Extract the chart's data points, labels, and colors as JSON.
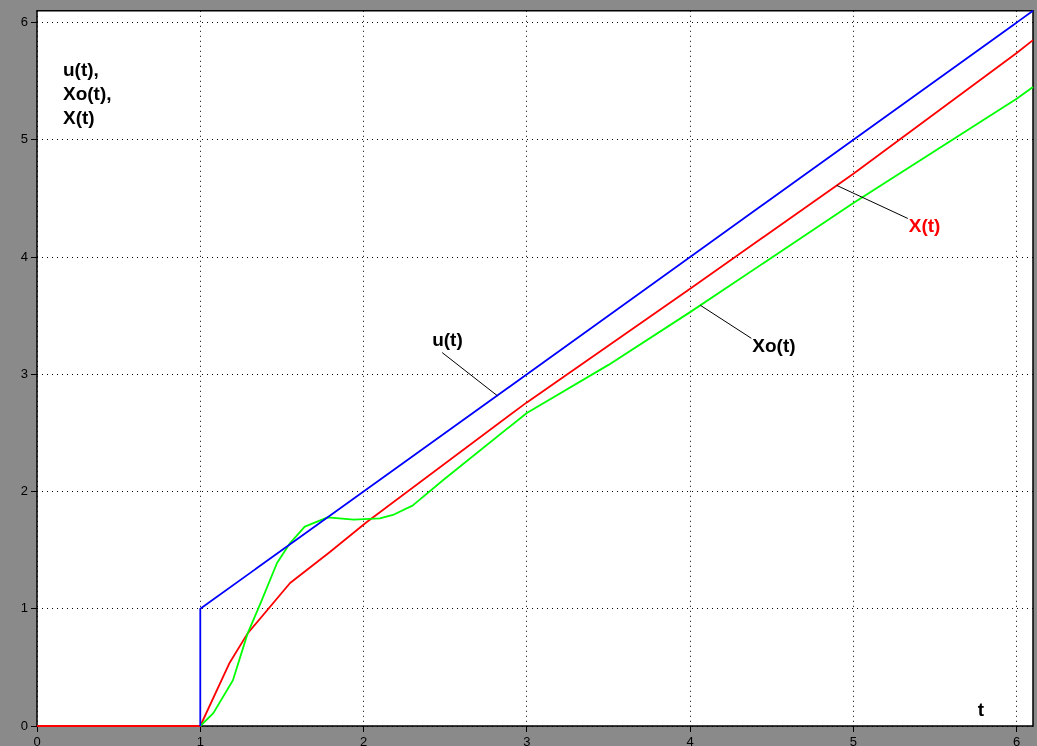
{
  "chart_data": {
    "type": "line",
    "xlabel": "t",
    "ylabel": "u(t), Xo(t), X(t)",
    "xlim": [
      0,
      6.1
    ],
    "ylim": [
      0,
      6.1
    ],
    "xticks": [
      0,
      1,
      2,
      3,
      4,
      5,
      6
    ],
    "yticks": [
      0,
      1,
      2,
      3,
      4,
      5,
      6
    ],
    "grid": true,
    "legend": false,
    "marker": "none",
    "line_style": "solid",
    "series": [
      {
        "name": "u(t)",
        "color": "#0000ff",
        "x": [
          1,
          1,
          6.1
        ],
        "values": [
          0,
          1,
          6.1
        ]
      },
      {
        "name": "Xo(t)",
        "color": "#00ff00",
        "x": [
          1,
          1.08,
          1.2,
          1.29,
          1.37,
          1.47,
          1.55,
          1.64,
          1.78,
          1.94,
          2.1,
          2.18,
          2.3,
          2.49,
          3,
          3.5,
          4,
          5,
          6,
          6.1
        ],
        "values": [
          0,
          0.11,
          0.39,
          0.79,
          1.05,
          1.39,
          1.56,
          1.7,
          1.78,
          1.76,
          1.77,
          1.8,
          1.88,
          2.1,
          2.67,
          3.08,
          3.53,
          4.46,
          5.35,
          5.45
        ]
      },
      {
        "name": "X(t)",
        "color": "#ff0000",
        "x": [
          0,
          1,
          1.18,
          1.29,
          1.55,
          1.79,
          2.02,
          3,
          4,
          5,
          6,
          6.1
        ],
        "values": [
          0,
          0,
          0.54,
          0.79,
          1.22,
          1.48,
          1.74,
          2.76,
          3.73,
          4.71,
          5.74,
          5.85
        ]
      }
    ]
  }
}
